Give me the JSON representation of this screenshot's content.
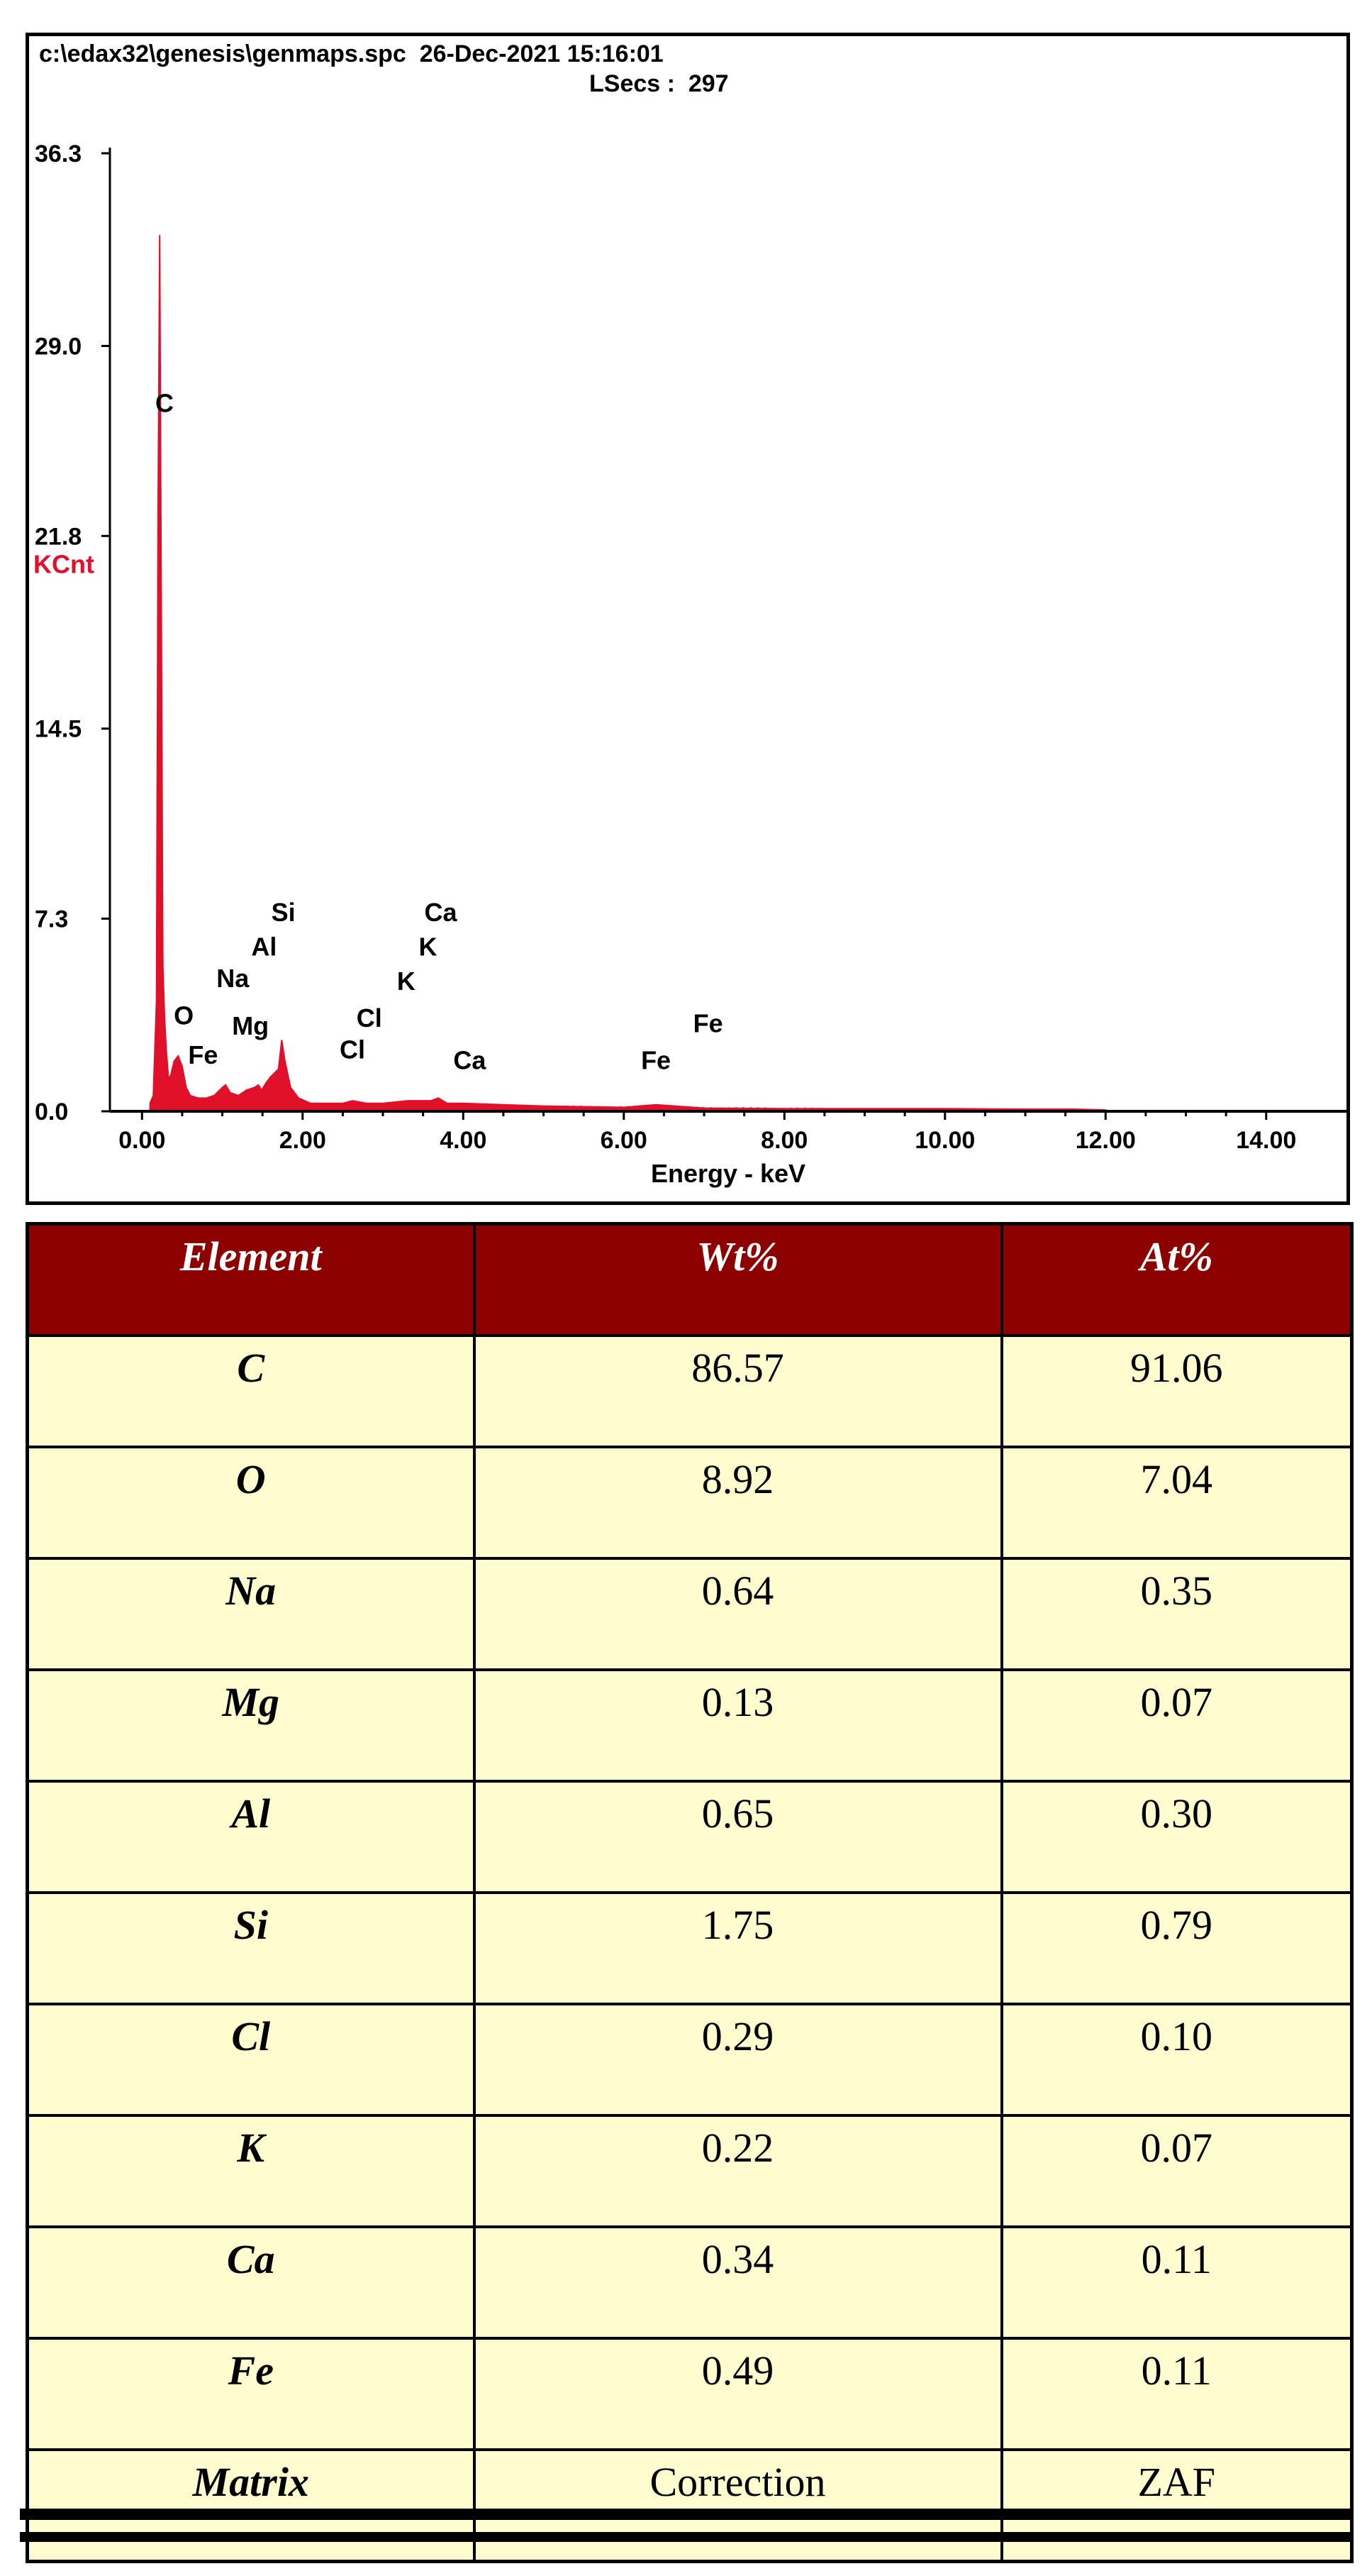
{
  "header": {
    "file_info": "c:\\edax32\\genesis\\genmaps.spc  26-Dec-2021 15:16:01",
    "lsecs": "LSecs :  297"
  },
  "colors": {
    "spectrum": "#e0102a",
    "table_header": "#8c0000",
    "table_cell": "#fffdd0"
  },
  "chart_data": {
    "type": "area",
    "xlabel": "Energy - keV",
    "ylabel": "KCnt",
    "xlim": [
      -0.4,
      15.0
    ],
    "ylim": [
      0.0,
      36.3
    ],
    "x_ticks": [
      "0.00",
      "2.00",
      "4.00",
      "6.00",
      "8.00",
      "10.00",
      "12.00",
      "14.00"
    ],
    "x_tick_values": [
      0,
      2,
      4,
      6,
      8,
      10,
      12,
      14
    ],
    "y_ticks": [
      "0.0",
      "7.3",
      "14.5",
      "21.8",
      "29.0",
      "36.3"
    ],
    "y_tick_values": [
      0.0,
      7.3,
      14.5,
      21.8,
      29.0,
      36.3
    ],
    "series": [
      {
        "x": [
          0.1,
          0.14,
          0.18,
          0.2,
          0.22,
          0.24,
          0.26,
          0.28,
          0.3,
          0.33,
          0.36,
          0.4,
          0.45,
          0.5,
          0.55,
          0.6,
          0.7,
          0.8,
          0.9,
          1.0,
          1.04,
          1.1,
          1.2,
          1.25,
          1.3,
          1.4,
          1.45,
          1.49,
          1.55,
          1.6,
          1.7,
          1.74,
          1.78,
          1.85,
          1.95,
          2.1,
          2.3,
          2.5,
          2.62,
          2.8,
          3.0,
          3.31,
          3.6,
          3.69,
          3.8,
          4.0,
          4.5,
          5.0,
          6.0,
          6.4,
          7.0,
          8.0,
          9.0,
          10.0,
          11.0,
          11.6,
          12.0
        ],
        "y": [
          0.3,
          0.6,
          4.2,
          22.5,
          33.2,
          19.0,
          5.5,
          3.6,
          2.4,
          1.2,
          1.4,
          1.9,
          2.1,
          1.7,
          0.9,
          0.6,
          0.5,
          0.5,
          0.6,
          0.9,
          1.0,
          0.7,
          0.6,
          0.7,
          0.8,
          0.9,
          1.0,
          0.8,
          1.1,
          1.3,
          1.6,
          2.7,
          1.9,
          0.9,
          0.5,
          0.3,
          0.3,
          0.3,
          0.4,
          0.3,
          0.3,
          0.4,
          0.4,
          0.5,
          0.3,
          0.3,
          0.25,
          0.2,
          0.15,
          0.25,
          0.12,
          0.1,
          0.1,
          0.1,
          0.08,
          0.08,
          0.05
        ]
      }
    ],
    "peak_labels": [
      {
        "label": "C",
        "x": 0.28,
        "y": 26.5
      },
      {
        "label": "O",
        "x": 0.52,
        "y": 3.3
      },
      {
        "label": "Fe",
        "x": 0.76,
        "y": 1.8
      },
      {
        "label": "Na",
        "x": 1.13,
        "y": 4.7
      },
      {
        "label": "Mg",
        "x": 1.35,
        "y": 2.9
      },
      {
        "label": "Al",
        "x": 1.52,
        "y": 5.9
      },
      {
        "label": "Si",
        "x": 1.76,
        "y": 7.2
      },
      {
        "label": "Cl",
        "x": 2.62,
        "y": 2.0
      },
      {
        "label": "Cl",
        "x": 2.83,
        "y": 3.2
      },
      {
        "label": "K",
        "x": 3.29,
        "y": 4.6
      },
      {
        "label": "K",
        "x": 3.56,
        "y": 5.9
      },
      {
        "label": "Ca",
        "x": 3.72,
        "y": 7.2
      },
      {
        "label": "Ca",
        "x": 4.08,
        "y": 1.6
      },
      {
        "label": "Fe",
        "x": 6.4,
        "y": 1.6
      },
      {
        "label": "Fe",
        "x": 7.05,
        "y": 3.0
      }
    ]
  },
  "table": {
    "columns": [
      "Element",
      "Wt%",
      "At%"
    ],
    "rows": [
      [
        "C",
        "86.57",
        "91.06"
      ],
      [
        "O",
        "8.92",
        "7.04"
      ],
      [
        "Na",
        "0.64",
        "0.35"
      ],
      [
        "Mg",
        "0.13",
        "0.07"
      ],
      [
        "Al",
        "0.65",
        "0.30"
      ],
      [
        "Si",
        "1.75",
        "0.79"
      ],
      [
        "Cl",
        "0.29",
        "0.10"
      ],
      [
        "K",
        "0.22",
        "0.07"
      ],
      [
        "Ca",
        "0.34",
        "0.11"
      ],
      [
        "Fe",
        "0.49",
        "0.11"
      ],
      [
        "Matrix",
        "Correction",
        "ZAF"
      ]
    ]
  }
}
